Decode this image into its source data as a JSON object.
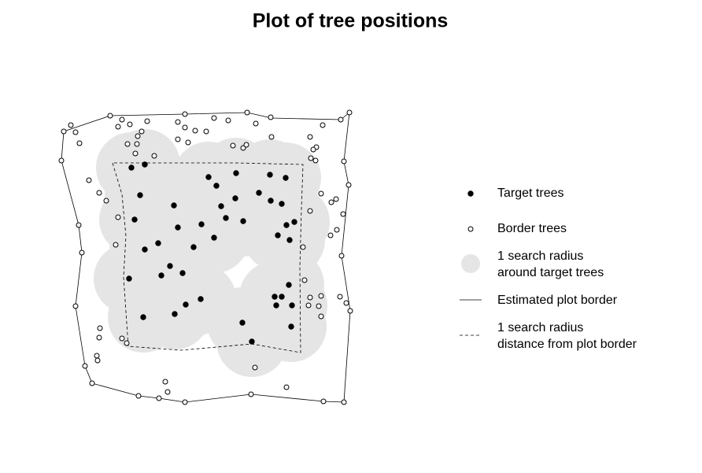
{
  "chart_data": {
    "type": "scatter",
    "title": "Plot of tree positions",
    "xlim": [
      0,
      400
    ],
    "ylim": [
      0,
      400
    ],
    "series": [
      {
        "name": "Target trees",
        "color": "#000000",
        "filled": true,
        "x": [
          107,
          124,
          118,
          111,
          161,
          166,
          141,
          124,
          156,
          145,
          172,
          104,
          186,
          196,
          212,
          205,
          215,
          240,
          221,
          227,
          239,
          249,
          269,
          283,
          303,
          284,
          298,
          304,
          314,
          293,
          308,
          307,
          289,
          298,
          291,
          311,
          195,
          176,
          162,
          122,
          248,
          310,
          260
        ],
        "y": [
          317,
          321,
          282,
          251,
          269,
          241,
          221,
          213,
          192,
          180,
          183,
          176,
          216,
          245,
          228,
          305,
          294,
          310,
          268,
          253,
          278,
          249,
          285,
          308,
          304,
          275,
          271,
          244,
          248,
          231,
          225,
          168,
          153,
          153,
          142,
          142,
          150,
          143,
          131,
          127,
          120,
          115,
          96
        ]
      },
      {
        "name": "Border trees",
        "color": "#000000",
        "filled": false,
        "x": [
          21,
          30,
          36,
          41,
          18,
          80,
          95,
          105,
          90,
          127,
          120,
          115,
          114,
          102,
          112,
          136,
          166,
          175,
          175,
          188,
          202,
          212,
          230,
          254,
          265,
          284,
          285,
          236,
          249,
          253,
          166,
          179,
          350,
          373,
          384,
          334,
          342,
          338,
          335,
          341,
          377,
          383,
          53,
          66,
          75,
          90,
          348,
          367,
          361,
          376,
          334,
          360,
          368,
          325,
          40,
          44,
          87,
          374,
          327,
          334,
          332,
          348,
          345,
          372,
          380,
          385,
          348,
          36,
          67,
          66,
          95,
          101,
          63,
          64,
          48,
          57,
          150,
          153,
          116,
          142,
          175,
          259,
          304,
          351,
          377,
          264
        ],
        "y": [
          363,
          371,
          362,
          348,
          326,
          383,
          378,
          372,
          369,
          376,
          363,
          357,
          347,
          347,
          335,
          332,
          375,
          385,
          368,
          364,
          363,
          380,
          377,
          387,
          373,
          381,
          356,
          345,
          342,
          346,
          353,
          349,
          371,
          378,
          387,
          356,
          343,
          340,
          329,
          326,
          325,
          295,
          301,
          285,
          275,
          254,
          284,
          277,
          273,
          258,
          262,
          231,
          238,
          216,
          244,
          209,
          219,
          205,
          174,
          152,
          142,
          154,
          141,
          153,
          145,
          135,
          128,
          141,
          113,
          101,
          100,
          94,
          78,
          72,
          65,
          43,
          45,
          32,
          27,
          24,
          19,
          29,
          38,
          20,
          19,
          63
        ]
      }
    ],
    "search_area": {
      "name": [
        "1 search radius",
        "around target trees"
      ],
      "color": "#e5e5e5",
      "radius": 45
    },
    "plot_border": {
      "name": "Estimated plot border",
      "x": [
        21,
        80,
        175,
        254,
        285,
        373,
        384,
        377,
        383,
        374,
        385,
        377,
        351,
        259,
        175,
        142,
        116,
        57,
        48,
        36,
        44,
        40,
        18,
        21
      ],
      "y": [
        363,
        383,
        385,
        387,
        380,
        378,
        387,
        325,
        295,
        205,
        135,
        19,
        20,
        29,
        19,
        24,
        27,
        43,
        65,
        141,
        209,
        244,
        326,
        363
      ]
    },
    "buffer_border": {
      "name": [
        "1 search radius",
        "distance from plot border"
      ],
      "x": [
        83,
        95,
        100,
        97,
        103,
        170,
        260,
        322,
        321,
        323,
        325,
        240,
        83
      ],
      "y": [
        323,
        283,
        230,
        178,
        90,
        85,
        93,
        82,
        190,
        265,
        321,
        323,
        323
      ]
    }
  }
}
